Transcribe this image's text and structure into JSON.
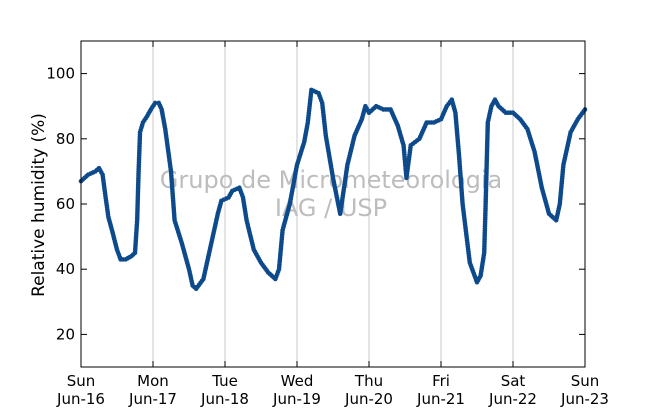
{
  "chart_data": {
    "type": "scatter",
    "title": "",
    "xlabel": "",
    "ylabel": "Relative humidity (%)",
    "xlim": [
      0,
      7
    ],
    "ylim": [
      10,
      110
    ],
    "yticks": [
      20,
      40,
      60,
      80,
      100
    ],
    "x_tick_labels": [
      {
        "x": 0,
        "day": "Sun",
        "date": "Jun-16"
      },
      {
        "x": 1,
        "day": "Mon",
        "date": "Jun-17"
      },
      {
        "x": 2,
        "day": "Tue",
        "date": "Jun-18"
      },
      {
        "x": 3,
        "day": "Wed",
        "date": "Jun-19"
      },
      {
        "x": 4,
        "day": "Thu",
        "date": "Jun-20"
      },
      {
        "x": 5,
        "day": "Fri",
        "date": "Jun-21"
      },
      {
        "x": 6,
        "day": "Sat",
        "date": "Jun-22"
      },
      {
        "x": 7,
        "day": "Sun",
        "date": "Jun-23"
      }
    ],
    "grid": "vertical",
    "marker_color": "#0d4a8c",
    "watermark": [
      "Grupo de Micrometeorologia",
      "IAG / USP"
    ],
    "series": [
      {
        "points": [
          [
            0.0,
            67
          ],
          [
            0.1,
            69
          ],
          [
            0.2,
            70
          ],
          [
            0.25,
            71
          ],
          [
            0.3,
            69
          ],
          [
            0.33,
            64
          ],
          [
            0.38,
            56
          ],
          [
            0.43,
            52
          ],
          [
            0.5,
            46
          ],
          [
            0.55,
            43
          ],
          [
            0.62,
            43
          ],
          [
            0.7,
            44
          ],
          [
            0.75,
            45
          ],
          [
            0.78,
            55
          ],
          [
            0.8,
            70
          ],
          [
            0.82,
            82
          ],
          [
            0.86,
            85
          ],
          [
            0.92,
            87
          ],
          [
            0.97,
            89
          ],
          [
            1.03,
            91
          ],
          [
            1.08,
            91
          ],
          [
            1.12,
            89
          ],
          [
            1.17,
            83
          ],
          [
            1.25,
            70
          ],
          [
            1.3,
            55
          ],
          [
            1.4,
            48
          ],
          [
            1.5,
            40
          ],
          [
            1.55,
            35
          ],
          [
            1.6,
            34
          ],
          [
            1.7,
            37
          ],
          [
            1.8,
            47
          ],
          [
            1.9,
            57
          ],
          [
            1.95,
            61
          ],
          [
            2.05,
            62
          ],
          [
            2.1,
            64
          ],
          [
            2.2,
            65
          ],
          [
            2.25,
            62
          ],
          [
            2.3,
            55
          ],
          [
            2.4,
            46
          ],
          [
            2.5,
            42
          ],
          [
            2.6,
            39
          ],
          [
            2.7,
            37
          ],
          [
            2.75,
            40
          ],
          [
            2.8,
            52
          ],
          [
            2.9,
            60
          ],
          [
            3.0,
            72
          ],
          [
            3.1,
            79
          ],
          [
            3.15,
            85
          ],
          [
            3.2,
            95
          ],
          [
            3.3,
            94
          ],
          [
            3.35,
            91
          ],
          [
            3.4,
            81
          ],
          [
            3.5,
            68
          ],
          [
            3.6,
            57
          ],
          [
            3.7,
            72
          ],
          [
            3.8,
            81
          ],
          [
            3.9,
            86
          ],
          [
            3.95,
            90
          ],
          [
            4.0,
            88
          ],
          [
            4.1,
            90
          ],
          [
            4.2,
            89
          ],
          [
            4.3,
            89
          ],
          [
            4.4,
            84
          ],
          [
            4.48,
            78
          ],
          [
            4.52,
            68
          ],
          [
            4.58,
            78
          ],
          [
            4.7,
            80
          ],
          [
            4.8,
            85
          ],
          [
            4.9,
            85
          ],
          [
            5.0,
            86
          ],
          [
            5.08,
            90
          ],
          [
            5.15,
            92
          ],
          [
            5.2,
            88
          ],
          [
            5.25,
            75
          ],
          [
            5.3,
            60
          ],
          [
            5.4,
            42
          ],
          [
            5.5,
            36
          ],
          [
            5.55,
            38
          ],
          [
            5.6,
            45
          ],
          [
            5.62,
            60
          ],
          [
            5.65,
            85
          ],
          [
            5.7,
            90
          ],
          [
            5.75,
            92
          ],
          [
            5.8,
            90
          ],
          [
            5.9,
            88
          ],
          [
            6.0,
            88
          ],
          [
            6.1,
            86
          ],
          [
            6.2,
            83
          ],
          [
            6.3,
            76
          ],
          [
            6.4,
            65
          ],
          [
            6.5,
            57
          ],
          [
            6.6,
            55
          ],
          [
            6.65,
            60
          ],
          [
            6.7,
            72
          ],
          [
            6.8,
            82
          ],
          [
            6.9,
            86
          ],
          [
            7.0,
            89
          ]
        ]
      }
    ]
  }
}
